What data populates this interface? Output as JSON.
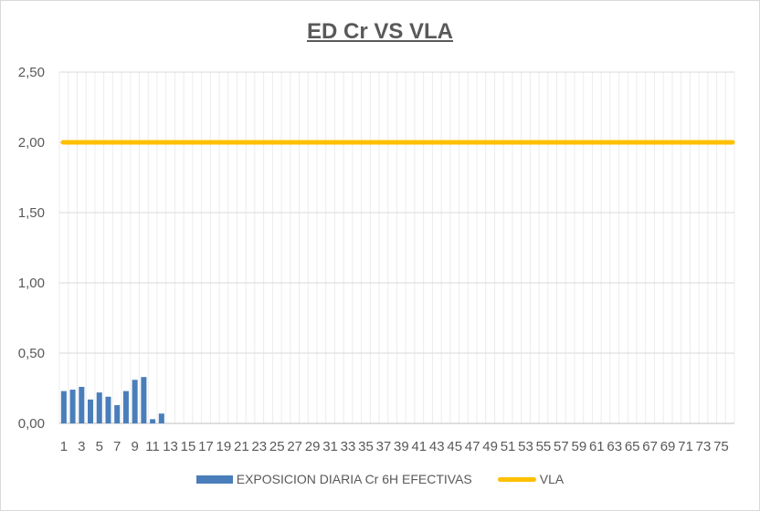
{
  "chart_data": {
    "type": "bar",
    "title": "ED Cr VS VLA",
    "ylim": [
      0,
      2.5
    ],
    "y_ticks": [
      "0,00",
      "0,50",
      "1,00",
      "1,50",
      "2,00",
      "2,50"
    ],
    "x_tick_labels": [
      "1",
      "3",
      "5",
      "7",
      "9",
      "11",
      "13",
      "15",
      "17",
      "19",
      "21",
      "23",
      "25",
      "27",
      "29",
      "31",
      "33",
      "35",
      "37",
      "39",
      "41",
      "43",
      "45",
      "47",
      "49",
      "51",
      "53",
      "55",
      "57",
      "59",
      "61",
      "63",
      "65",
      "67",
      "69",
      "71",
      "73",
      "75"
    ],
    "category_count": 76,
    "grid": true,
    "legend_position": "bottom",
    "series": [
      {
        "name": "EXPOSICION DIARIA Cr 6H EFECTIVAS",
        "type": "bar",
        "color": "#4a7ebb",
        "values": [
          0.23,
          0.24,
          0.26,
          0.17,
          0.22,
          0.19,
          0.13,
          0.23,
          0.31,
          0.33,
          0.03,
          0.07
        ]
      },
      {
        "name": "VLA",
        "type": "line",
        "color": "#ffc000",
        "value": 2.0
      }
    ]
  }
}
